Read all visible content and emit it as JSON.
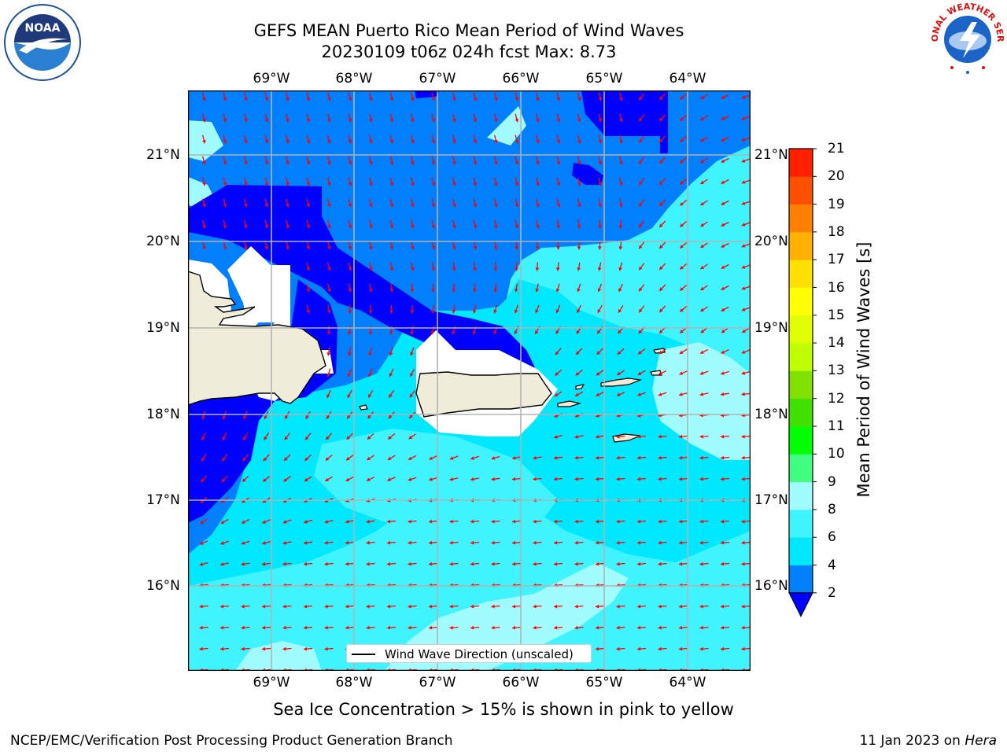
{
  "header": {
    "title_line1": "GEFS MEAN Puerto Rico Mean Period of Wind Waves",
    "title_line2": "20230109 t06z 024h fcst   Max: 8.73"
  },
  "logos": {
    "left": "NOAA",
    "left_ring_text": "NATIONAL OCEANIC AND ATMOSPHERIC ADMINISTRATION · U.S. DEPARTMENT OF COMMERCE",
    "right_ring_text": "NATIONAL WEATHER SERVICE"
  },
  "map": {
    "lon_labels": [
      "69°W",
      "68°W",
      "67°W",
      "66°W",
      "65°W",
      "64°W"
    ],
    "lat_labels": [
      "21°N",
      "20°N",
      "19°N",
      "18°N",
      "17°N",
      "16°N"
    ],
    "land_color": "#efecda",
    "no_wave_color": "#ffffff",
    "arrow_color": "#ff0000"
  },
  "colorbar": {
    "label": "Mean Period of Wind Waves [s]",
    "ticks": [
      "2",
      "4",
      "6",
      "8",
      "9",
      "10",
      "11",
      "12",
      "13",
      "14",
      "15",
      "16",
      "17",
      "18",
      "19",
      "20",
      "21"
    ],
    "colors": [
      "#0080ff",
      "#00e8ff",
      "#40f4ff",
      "#a0fcff",
      "#40ff80",
      "#00ff00",
      "#40e000",
      "#80e000",
      "#c0ff00",
      "#e0ff00",
      "#ffff00",
      "#ffe000",
      "#ffb000",
      "#ff8000",
      "#ff5000",
      "#ff2000"
    ],
    "extend_low_color": "#0000ff"
  },
  "legend": {
    "label": "Wind Wave Direction (unscaled)"
  },
  "note": "Sea Ice Concentration > 15% is shown in pink to yellow",
  "footer": {
    "left": "NCEP/EMC/Verification Post Processing Product Generation Branch",
    "right_date": "11 Jan 2023 on ",
    "right_machine": "Hera"
  }
}
